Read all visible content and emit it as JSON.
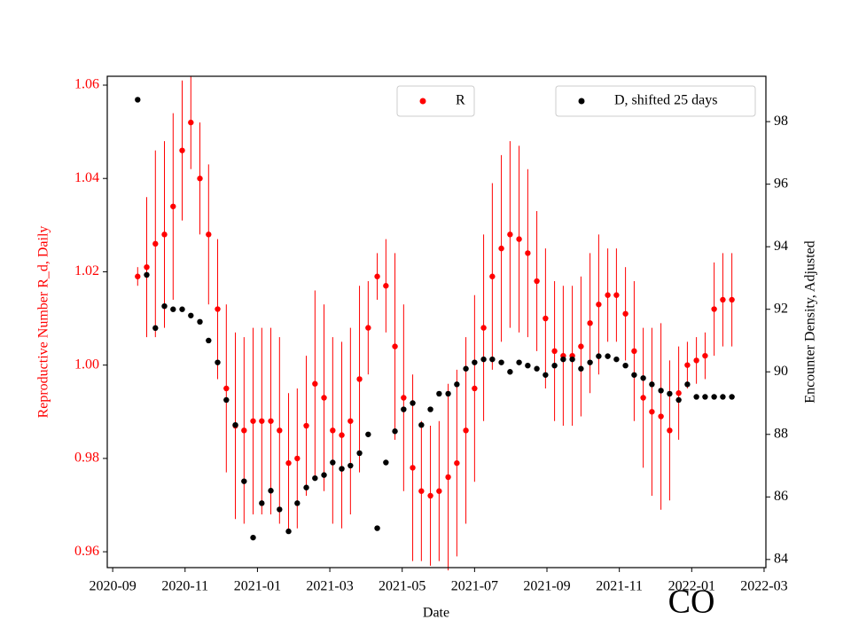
{
  "chart_data": {
    "type": "scatter",
    "x_label": "Date",
    "y_label": "Reproductive Number R_d, Daily",
    "y2_label": "Encounter Density, Adjusted",
    "annotation": "CO",
    "xlim": [
      8.85,
      27.05
    ],
    "xticks": [
      {
        "value": 9,
        "label": "2020-09"
      },
      {
        "value": 11,
        "label": "2020-11"
      },
      {
        "value": 13,
        "label": "2021-01"
      },
      {
        "value": 15,
        "label": "2021-03"
      },
      {
        "value": 17,
        "label": "2021-05"
      },
      {
        "value": 19,
        "label": "2021-07"
      },
      {
        "value": 21,
        "label": "2021-09"
      },
      {
        "value": 23,
        "label": "2021-11"
      },
      {
        "value": 25,
        "label": "2022-01"
      },
      {
        "value": 27,
        "label": "2022-03"
      }
    ],
    "ylim": [
      0.9566,
      1.0619
    ],
    "yticks": [
      {
        "value": 0.96,
        "label": "0.96"
      },
      {
        "value": 0.98,
        "label": "0.98"
      },
      {
        "value": 1.0,
        "label": "1.00"
      },
      {
        "value": 1.02,
        "label": "1.02"
      },
      {
        "value": 1.04,
        "label": "1.04"
      },
      {
        "value": 1.06,
        "label": "1.06"
      }
    ],
    "y2lim": [
      83.74,
      99.45
    ],
    "y2ticks": [
      84,
      86,
      88,
      90,
      92,
      94,
      96,
      98
    ],
    "x": [
      9.69,
      9.94,
      10.18,
      10.43,
      10.67,
      10.92,
      11.16,
      11.41,
      11.65,
      11.9,
      12.14,
      12.39,
      12.63,
      12.88,
      13.12,
      13.37,
      13.61,
      13.86,
      14.1,
      14.35,
      14.59,
      14.84,
      15.08,
      15.33,
      15.57,
      15.82,
      16.06,
      16.31,
      16.55,
      16.8,
      17.04,
      17.29,
      17.53,
      17.78,
      18.02,
      18.27,
      18.51,
      18.76,
      19.0,
      19.25,
      19.49,
      19.74,
      19.98,
      20.23,
      20.47,
      20.72,
      20.96,
      21.21,
      21.45,
      21.7,
      21.94,
      22.19,
      22.43,
      22.68,
      22.92,
      23.17,
      23.41,
      23.66,
      23.9,
      24.15,
      24.39,
      24.64,
      24.88,
      25.13,
      25.37,
      25.62,
      25.86,
      26.11
    ],
    "series": [
      {
        "name": "R",
        "color": "#ff0000",
        "axis": "y",
        "values": [
          1.019,
          1.021,
          1.026,
          1.028,
          1.034,
          1.046,
          1.052,
          1.04,
          1.028,
          1.012,
          0.995,
          0.987,
          0.986,
          0.988,
          0.988,
          0.988,
          0.986,
          0.979,
          0.98,
          0.987,
          0.996,
          0.993,
          0.986,
          0.985,
          0.988,
          0.997,
          1.008,
          1.019,
          1.017,
          1.004,
          0.993,
          0.978,
          0.973,
          0.972,
          0.973,
          0.976,
          0.979,
          0.986,
          0.995,
          1.008,
          1.019,
          1.025,
          1.028,
          1.027,
          1.024,
          1.018,
          1.01,
          1.003,
          1.002,
          1.002,
          1.004,
          1.009,
          1.013,
          1.015,
          1.015,
          1.011,
          1.003,
          0.993,
          0.99,
          0.989,
          0.986,
          0.994,
          1.0,
          1.001,
          1.002,
          1.012,
          1.014,
          1.014
        ],
        "errors": [
          0.002,
          0.015,
          0.02,
          0.02,
          0.02,
          0.015,
          0.01,
          0.012,
          0.015,
          0.015,
          0.018,
          0.02,
          0.02,
          0.02,
          0.02,
          0.02,
          0.02,
          0.015,
          0.015,
          0.015,
          0.02,
          0.02,
          0.02,
          0.02,
          0.02,
          0.02,
          0.01,
          0.005,
          0.01,
          0.02,
          0.02,
          0.02,
          0.015,
          0.015,
          0.015,
          0.02,
          0.02,
          0.02,
          0.02,
          0.02,
          0.02,
          0.02,
          0.02,
          0.02,
          0.018,
          0.015,
          0.015,
          0.015,
          0.015,
          0.015,
          0.015,
          0.015,
          0.015,
          0.01,
          0.01,
          0.01,
          0.015,
          0.015,
          0.018,
          0.02,
          0.015,
          0.01,
          0.005,
          0.005,
          0.005,
          0.01,
          0.01,
          0.01
        ]
      },
      {
        "name": "D, shifted 25 days",
        "color": "#000000",
        "axis": "y2",
        "values": [
          98.7,
          93.1,
          91.4,
          92.1,
          92.0,
          92.0,
          91.8,
          91.6,
          91.0,
          90.3,
          89.1,
          88.3,
          86.5,
          84.7,
          85.8,
          86.2,
          85.6,
          84.9,
          85.8,
          86.3,
          86.6,
          86.7,
          87.1,
          86.9,
          87.0,
          87.4,
          88.0,
          85.0,
          87.1,
          88.1,
          88.8,
          89.0,
          88.3,
          88.8,
          89.3,
          89.3,
          89.6,
          90.1,
          90.3,
          90.4,
          90.4,
          90.3,
          90.0,
          90.3,
          90.2,
          90.1,
          89.9,
          90.2,
          90.4,
          90.4,
          90.1,
          90.3,
          90.5,
          90.5,
          90.4,
          90.2,
          89.9,
          89.8,
          89.6,
          89.4,
          89.3,
          89.1,
          89.6,
          89.2,
          89.2,
          89.2,
          89.2,
          89.2
        ]
      }
    ]
  }
}
